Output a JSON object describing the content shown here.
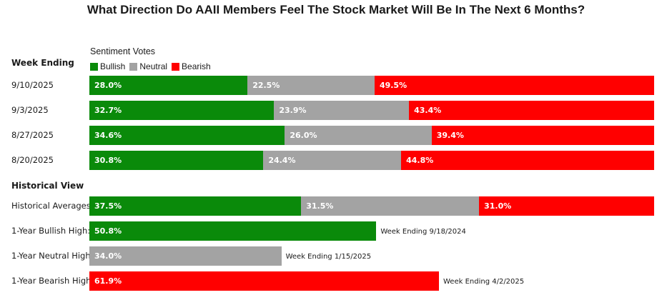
{
  "title": "What Direction Do AAII Members Feel The Stock Market Will Be In The Next 6 Months?",
  "legend": {
    "title": "Sentiment Votes",
    "items": [
      {
        "label": "Bullish",
        "color": "#0a8a0a"
      },
      {
        "label": "Neutral",
        "color": "#a3a3a3"
      },
      {
        "label": "Bearish",
        "color": "#ff0000"
      }
    ]
  },
  "sections": {
    "week_ending": "Week Ending",
    "historical_view": "Historical View"
  },
  "chart_data": {
    "type": "bar",
    "orientation": "horizontal",
    "stacked": true,
    "series_names": [
      "Bullish",
      "Neutral",
      "Bearish"
    ],
    "weekly": [
      {
        "label": "9/10/2025",
        "values": [
          28.0,
          22.5,
          49.5
        ],
        "texts": [
          "28.0%",
          "22.5%",
          "49.5%"
        ]
      },
      {
        "label": "9/3/2025",
        "values": [
          32.7,
          23.9,
          43.4
        ],
        "texts": [
          "32.7%",
          "23.9%",
          "43.4%"
        ]
      },
      {
        "label": "8/27/2025",
        "values": [
          34.6,
          26.0,
          39.4
        ],
        "texts": [
          "34.6%",
          "26.0%",
          "39.4%"
        ]
      },
      {
        "label": "8/20/2025",
        "values": [
          30.8,
          24.4,
          44.8
        ],
        "texts": [
          "30.8%",
          "24.4%",
          "44.8%"
        ]
      }
    ],
    "historical": [
      {
        "label": "Historical Averages",
        "values": [
          37.5,
          31.5,
          31.0
        ],
        "texts": [
          "37.5%",
          "31.5%",
          "31.0%"
        ],
        "note": ""
      },
      {
        "label": "1-Year Bullish High:",
        "series": "Bullish",
        "value": 50.8,
        "text": "50.8%",
        "note": "Week Ending 9/18/2024"
      },
      {
        "label": "1-Year Neutral High",
        "series": "Neutral",
        "value": 34.0,
        "text": "34.0%",
        "note": "Week Ending 1/15/2025"
      },
      {
        "label": "1-Year Bearish High",
        "series": "Bearish",
        "value": 61.9,
        "text": "61.9%",
        "note": "Week Ending 4/2/2025"
      }
    ],
    "xlim": [
      0,
      100
    ]
  }
}
